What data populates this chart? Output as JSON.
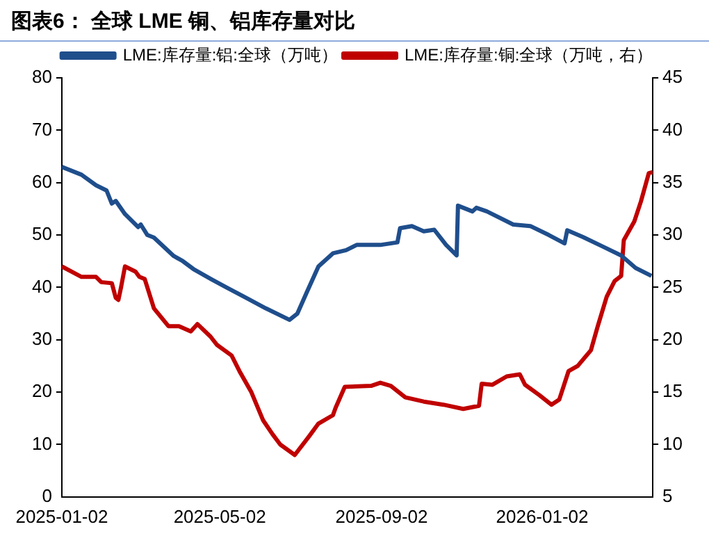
{
  "chart_data": {
    "type": "line",
    "title": "图表6：  全球 LME 铜、铝库存量对比",
    "xlim": [
      "2025-01-02",
      "2026-03-27"
    ],
    "xticks": [
      "2025-01-02",
      "2025-05-02",
      "2025-09-02",
      "2026-01-02"
    ],
    "ylim": [
      0,
      80
    ],
    "yticks": [
      0,
      10,
      20,
      30,
      40,
      50,
      60,
      70,
      80
    ],
    "y2lim": [
      5,
      45
    ],
    "y2ticks": [
      5,
      10,
      15,
      20,
      25,
      30,
      35,
      40,
      45
    ],
    "legend": "top",
    "grid": false,
    "marker": "none",
    "line_style": "solid",
    "series": [
      {
        "name": "LME:库存量:铝:全球（万吨）",
        "color": "#1f4e8c",
        "x": [
          "2025-01-02",
          "2025-01-17",
          "2025-01-28",
          "2025-02-05",
          "2025-02-09",
          "2025-02-12",
          "2025-02-19",
          "2025-03-01",
          "2025-03-03",
          "2025-03-08",
          "2025-03-13",
          "2025-03-28",
          "2025-04-04",
          "2025-04-12",
          "2025-04-26",
          "2025-05-07",
          "2025-05-22",
          "2025-06-06",
          "2025-06-24",
          "2025-06-30",
          "2025-07-07",
          "2025-07-16",
          "2025-07-27",
          "2025-08-06",
          "2025-08-14",
          "2025-09-01",
          "2025-09-14",
          "2025-09-16",
          "2025-09-25",
          "2025-10-04",
          "2025-10-12",
          "2025-10-21",
          "2025-10-29",
          "2025-10-30",
          "2025-11-10",
          "2025-11-13",
          "2025-11-21",
          "2025-12-11",
          "2025-12-24",
          "2026-01-07",
          "2026-01-19",
          "2026-01-21",
          "2026-02-02",
          "2026-02-17",
          "2026-03-03",
          "2026-03-14",
          "2026-03-26"
        ],
        "values": [
          63,
          61.5,
          59.5,
          58.5,
          56,
          56.5,
          54,
          51.5,
          52,
          50,
          49.5,
          46,
          45,
          43.5,
          41.5,
          40,
          38,
          36,
          33.8,
          35,
          39,
          44,
          46.5,
          47.1,
          48.1,
          48.1,
          48.6,
          51.3,
          51.7,
          50.7,
          51,
          48.1,
          46.1,
          55.6,
          54.5,
          55.2,
          54.5,
          52,
          51.7,
          50,
          48.4,
          50.9,
          49.6,
          47.8,
          46.1,
          43.7,
          42.2
        ]
      },
      {
        "name": "LME:库存量:铜:全球（万吨，右）",
        "color": "#c00000",
        "axis": "y2",
        "x": [
          "2025-01-02",
          "2025-01-17",
          "2025-01-28",
          "2025-02-01",
          "2025-02-09",
          "2025-02-12",
          "2025-02-14",
          "2025-02-16",
          "2025-02-19",
          "2025-02-27",
          "2025-03-02",
          "2025-03-06",
          "2025-03-13",
          "2025-03-24",
          "2025-04-01",
          "2025-04-10",
          "2025-04-15",
          "2025-04-25",
          "2025-04-30",
          "2025-05-11",
          "2025-05-17",
          "2025-05-26",
          "2025-06-04",
          "2025-06-11",
          "2025-06-17",
          "2025-06-28",
          "2025-07-09",
          "2025-07-16",
          "2025-07-27",
          "2025-07-29",
          "2025-08-05",
          "2025-08-25",
          "2025-09-01",
          "2025-09-09",
          "2025-09-20",
          "2025-10-04",
          "2025-10-19",
          "2025-11-03",
          "2025-11-15",
          "2025-11-17",
          "2025-11-25",
          "2025-12-06",
          "2025-12-16",
          "2025-12-20",
          "2025-12-31",
          "2026-01-09",
          "2026-01-15",
          "2026-01-22",
          "2026-01-29",
          "2026-02-08",
          "2026-02-13",
          "2026-02-20",
          "2026-02-26",
          "2026-03-03",
          "2026-03-05",
          "2026-03-13",
          "2026-03-18",
          "2026-03-24",
          "2026-03-27"
        ],
        "values": [
          27,
          26,
          26,
          25.5,
          25.4,
          24,
          23.8,
          25,
          27,
          26.5,
          26,
          25.8,
          23,
          21.3,
          21.3,
          20.8,
          21.5,
          20.3,
          19.5,
          18.5,
          17,
          15,
          12.3,
          11,
          10,
          9,
          10.8,
          12,
          12.8,
          13.5,
          15.5,
          15.6,
          15.9,
          15.6,
          14.5,
          14.1,
          13.8,
          13.4,
          13.7,
          15.8,
          15.7,
          16.5,
          16.7,
          15.7,
          14.7,
          13.8,
          14.3,
          17,
          17.5,
          19,
          21.2,
          24.1,
          25.6,
          26.1,
          29.5,
          31.3,
          33.2,
          35.9,
          36
        ]
      }
    ]
  }
}
